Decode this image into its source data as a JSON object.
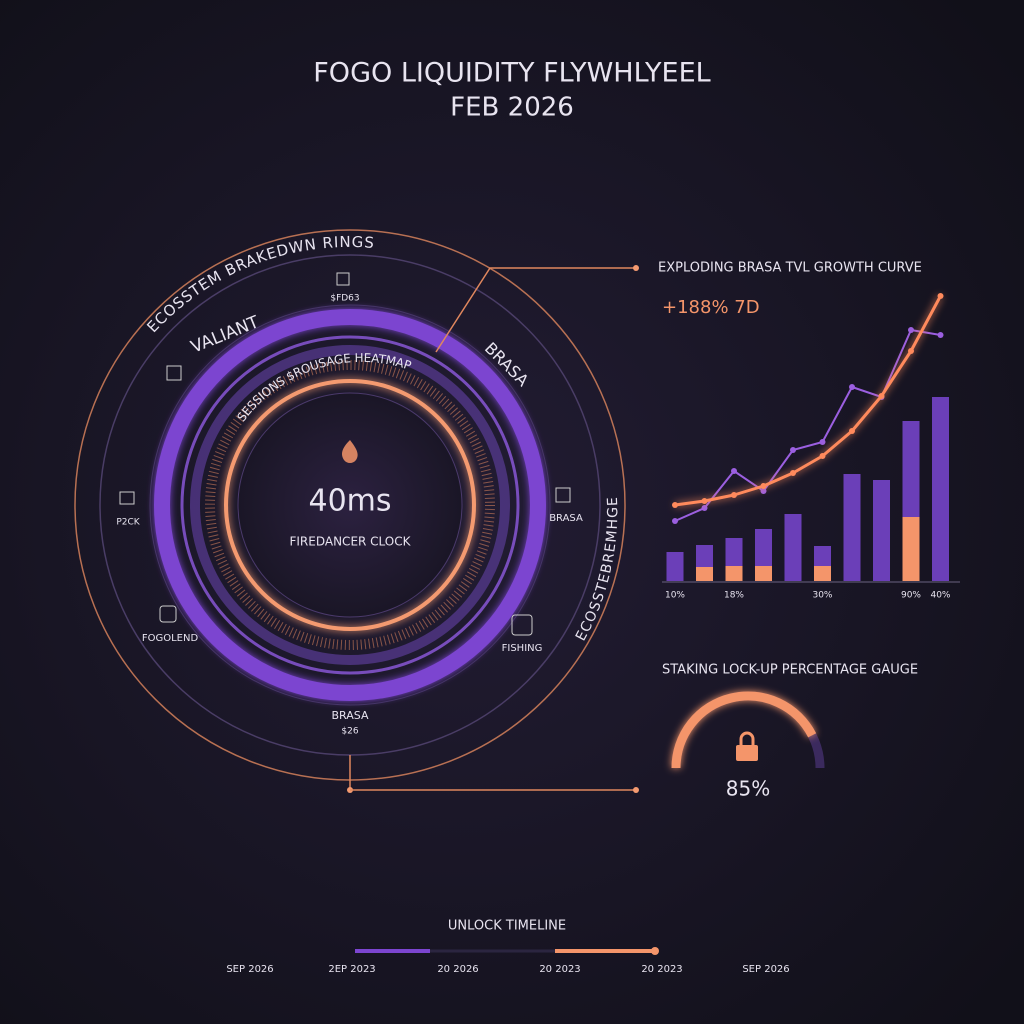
{
  "header": {
    "title": "FOGO LIQUIDITY FLYWHLYEEL",
    "subtitle": "FEB 2026"
  },
  "rings": {
    "title": "ECOSSTEM BRAKEDWN RINGS",
    "heatmap": "SESSIONS $ROUSAGE HEATMAP",
    "clock_value": "40ms",
    "clock_label": "FIREDANCER CLOCK",
    "side_label": "ECOSSTEBREMHGE",
    "nodes": [
      "VALIANT",
      "BRASA",
      "$FD63",
      "P2CK",
      "BRASA",
      "FOGOLEND",
      "FISHING",
      "BRASA",
      "$26"
    ]
  },
  "chart_data": [
    {
      "type": "bar",
      "title": "EXPLODING BRASA TVL GROWTH CURVE",
      "subtitle": "+188% 7D",
      "categories": [
        "10%",
        null,
        "18%",
        null,
        null,
        "30%",
        null,
        null,
        "90%",
        "40%"
      ],
      "ylim": [
        0,
        300
      ],
      "series": [
        {
          "color": "#f4956a",
          "values": [
            0,
            14,
            15,
            15,
            0,
            15,
            0,
            0,
            64,
            0
          ]
        },
        {
          "color": "#6b3fb8",
          "values": [
            29,
            22,
            28,
            37,
            67,
            20,
            107,
            101,
            96,
            184
          ]
        },
        {
          "type": "line",
          "color": "#9b5fe0",
          "values": [
            60,
            73,
            110,
            90,
            131,
            139,
            194,
            184,
            251,
            246
          ]
        },
        {
          "type": "line",
          "color": "#ff8a5c",
          "values": [
            76,
            80,
            86,
            95,
            108,
            125,
            150,
            185,
            230,
            285
          ]
        }
      ]
    },
    {
      "type": "gauge",
      "title": "STAKING LOCK-UP PERCENTAGE GAUGE",
      "value": 85,
      "value_label": "85%",
      "ylim": [
        0,
        100
      ],
      "color": "#f4956a",
      "track_color": "#3b2a5e"
    }
  ],
  "timeline": {
    "title": "UNLOCK TIMELINE",
    "labels": [
      "SEP 2026",
      "2EP 2023",
      "20 2026",
      "20 2023",
      "20 2023",
      "SEP 2026"
    ]
  }
}
